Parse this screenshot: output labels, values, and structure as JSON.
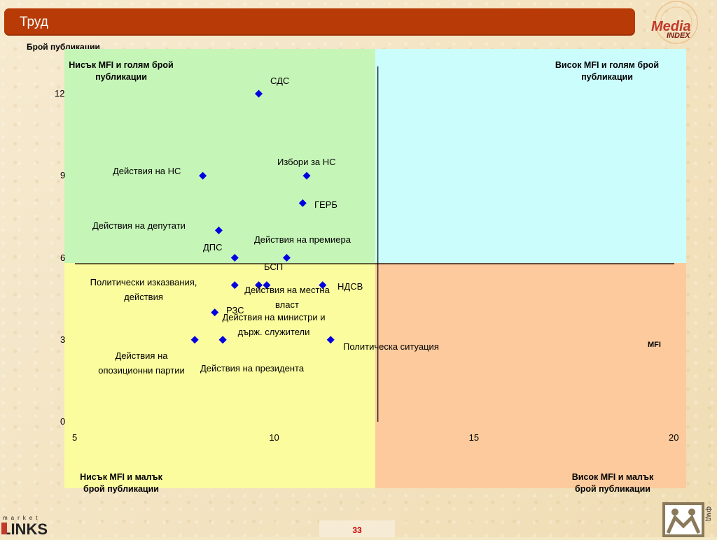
{
  "header": {
    "title": "Труд"
  },
  "logos": {
    "media_index": {
      "line1": "Media",
      "line2": "INDEX"
    },
    "market_links": {
      "line1": "market",
      "line2": "LINKS"
    },
    "fmd": {
      "text": "фмд"
    }
  },
  "page_number": "33",
  "quadrants": {
    "top_left": "Нисък MFI и голям брой публикации",
    "top_right": "Висок MFI и голям брой публикации",
    "bottom_left": "Нисък MFI и малък брой публикации",
    "bottom_right": "Висок MFI и малък брой публикации"
  },
  "colors": {
    "accent": "#b83a06",
    "marker": "#0000e0",
    "q_tl": "#c6f5b8",
    "q_tr": "#ccfdfd",
    "q_bl": "#fbfc9e",
    "q_br": "#fcca9c"
  },
  "chart_data": {
    "type": "scatter",
    "title": "",
    "xlabel": "MFI",
    "ylabel": "Брой публикации",
    "xlim": [
      5,
      20
    ],
    "ylim": [
      0,
      12
    ],
    "x_ticks": [
      "5",
      "10",
      "15",
      "20"
    ],
    "y_ticks": [
      "0",
      "3",
      "6",
      "9",
      "12"
    ],
    "quadrant_split": {
      "x": 12.6,
      "y": 5.8
    },
    "points": [
      {
        "label": "СДС",
        "x": 9.6,
        "y": 12
      },
      {
        "label": "Действия на НС",
        "x": 8.2,
        "y": 9
      },
      {
        "label": "Избори за НС",
        "x": 10.8,
        "y": 9
      },
      {
        "label": "ГЕРБ",
        "x": 10.7,
        "y": 8
      },
      {
        "label": "Действия на депутати",
        "x": 8.6,
        "y": 7
      },
      {
        "label": "ДПС",
        "x": 9.0,
        "y": 6
      },
      {
        "label": "Действия на премиера",
        "x": 10.3,
        "y": 6
      },
      {
        "label": "Политически изказвания, действия",
        "x": 9.0,
        "y": 5
      },
      {
        "label": "БСП",
        "x": 9.6,
        "y": 5
      },
      {
        "label": "Действия на местна власт",
        "x": 9.8,
        "y": 5
      },
      {
        "label": "НДСВ",
        "x": 11.2,
        "y": 5
      },
      {
        "label": "РЗС",
        "x": 8.5,
        "y": 4
      },
      {
        "label": "Действия на министри и държ. служители",
        "x": 8.7,
        "y": 3
      },
      {
        "label": "Действия на опозиционни партии",
        "x": 8.0,
        "y": 3
      },
      {
        "label": "Действия на президента",
        "x": 8.7,
        "y": 3
      },
      {
        "label": "Политическа ситуация",
        "x": 11.4,
        "y": 3
      }
    ]
  }
}
